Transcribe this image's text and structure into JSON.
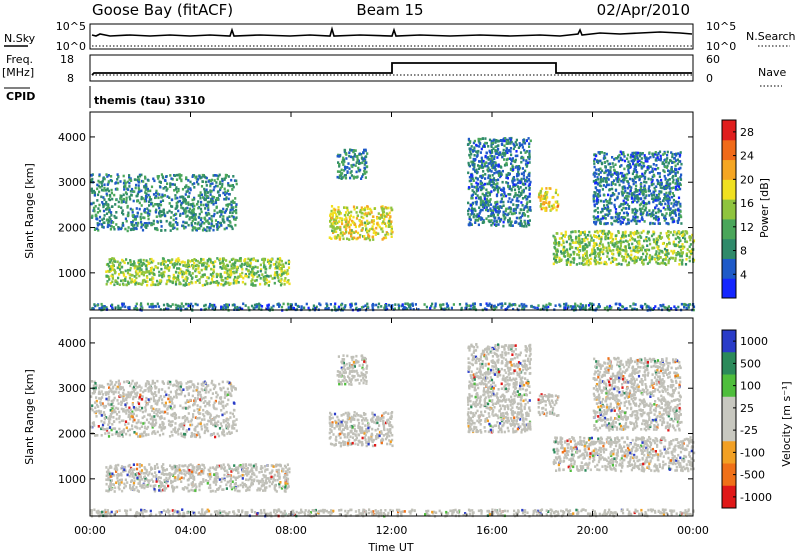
{
  "header": {
    "station": "Goose Bay (fitACF)",
    "beam": "Beam 15",
    "date": "02/Apr/2010"
  },
  "strips": {
    "nsky_label": "N.Sky",
    "nsearch_label": "N.Search",
    "noise_ticks": [
      "10^5",
      "10^0"
    ],
    "freq_label": "Freq.",
    "freq_unit": "[MHz]",
    "freq_ticks": [
      "18",
      "8"
    ],
    "nave_label": "Nave",
    "nave_ticks": [
      "60",
      "0"
    ],
    "cpid_label": "CPID",
    "cpid_value": "themis (tau) 3310"
  },
  "colors": {
    "power_scale": [
      "#1426ff",
      "#1e5ac8",
      "#2f8a6a",
      "#4aa65a",
      "#8fc43e",
      "#f0e020",
      "#f5a623",
      "#f06a19",
      "#e01e1e"
    ],
    "velocity_scale": [
      "#2a3cc8",
      "#2b8a5a",
      "#4fbe3c",
      "#c8c8c0",
      "#c8c8c0",
      "#f2a024",
      "#f07018",
      "#e01818"
    ],
    "ground_scatter": "#c0c0b8"
  },
  "chart_data": [
    {
      "type": "heatmap",
      "panel": "power",
      "ylabel": "Slant Range [km]",
      "ylim": [
        180,
        4550
      ],
      "y_ticks": [
        "1000",
        "2000",
        "3000",
        "4000"
      ],
      "xlim": [
        0,
        24
      ],
      "x_ticks": [
        "00:00",
        "04:00",
        "08:00",
        "12:00",
        "16:00",
        "20:00",
        "00:00"
      ],
      "colorbar_label": "Power [dB]",
      "colorbar_ticks": [
        "4",
        "8",
        "12",
        "16",
        "20",
        "24",
        "28"
      ],
      "colorbar_range": [
        0,
        30
      ],
      "regions": [
        {
          "t0": 0.0,
          "t1": 5.8,
          "r0": 1950,
          "r1": 3200,
          "level": 8
        },
        {
          "t0": 0.6,
          "t1": 7.9,
          "r0": 750,
          "r1": 1350,
          "level": 14
        },
        {
          "t0": 9.5,
          "t1": 12.0,
          "r0": 1750,
          "r1": 2500,
          "level": 18
        },
        {
          "t0": 9.8,
          "t1": 11.0,
          "r0": 3100,
          "r1": 3750,
          "level": 8
        },
        {
          "t0": 15.0,
          "t1": 17.5,
          "r0": 2050,
          "r1": 4000,
          "level": 6
        },
        {
          "t0": 17.8,
          "t1": 18.6,
          "r0": 2400,
          "r1": 2900,
          "level": 20
        },
        {
          "t0": 18.4,
          "t1": 24.0,
          "r0": 1200,
          "r1": 1950,
          "level": 14
        },
        {
          "t0": 20.0,
          "t1": 23.5,
          "r0": 2100,
          "r1": 3700,
          "level": 6
        },
        {
          "t0": 0.0,
          "t1": 24.0,
          "r0": 200,
          "r1": 350,
          "level": 6
        }
      ]
    },
    {
      "type": "heatmap",
      "panel": "velocity",
      "ylabel": "Slant Range [km]",
      "ylim": [
        180,
        4550
      ],
      "y_ticks": [
        "1000",
        "2000",
        "3000",
        "4000"
      ],
      "xlim": [
        0,
        24
      ],
      "x_ticks": [
        "00:00",
        "04:00",
        "08:00",
        "12:00",
        "16:00",
        "20:00",
        "00:00"
      ],
      "xlabel": "Time UT",
      "colorbar_label": "Velocity [m s⁻¹]",
      "colorbar_ticks": [
        "1000",
        "500",
        "100",
        "25",
        "-25",
        "-100",
        "-500",
        "-1000"
      ],
      "regions": [
        {
          "t0": 0.0,
          "t1": 5.8,
          "r0": 1950,
          "r1": 3200,
          "level": 0
        },
        {
          "t0": 0.6,
          "t1": 7.9,
          "r0": 750,
          "r1": 1350,
          "level": 0
        },
        {
          "t0": 9.5,
          "t1": 12.0,
          "r0": 1750,
          "r1": 2500,
          "level": 0
        },
        {
          "t0": 9.8,
          "t1": 11.0,
          "r0": 3100,
          "r1": 3750,
          "level": 0
        },
        {
          "t0": 15.0,
          "t1": 17.5,
          "r0": 2050,
          "r1": 4000,
          "level": 0
        },
        {
          "t0": 17.8,
          "t1": 18.6,
          "r0": 2400,
          "r1": 2900,
          "level": 0
        },
        {
          "t0": 18.4,
          "t1": 24.0,
          "r0": 1200,
          "r1": 1950,
          "level": 0
        },
        {
          "t0": 20.0,
          "t1": 23.5,
          "r0": 2100,
          "r1": 3700,
          "level": 0
        },
        {
          "t0": 0.0,
          "t1": 24.0,
          "r0": 200,
          "r1": 350,
          "level": 0
        }
      ]
    }
  ]
}
